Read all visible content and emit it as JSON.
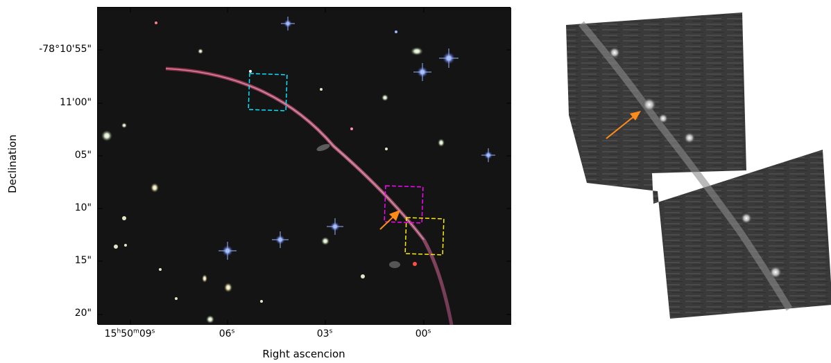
{
  "left_panel": {
    "xlabel": "Right ascencion",
    "ylabel": "Declination",
    "y_ticks": [
      "-78°10'55\"",
      "11'00\"",
      "05\"",
      "10\"",
      "15\"",
      "20\""
    ],
    "x_ticks": [
      {
        "main": "15",
        "h": "h",
        "mid": "50",
        "m": "m",
        "sec": "09",
        "s": "s"
      },
      {
        "main": "",
        "h": "",
        "mid": "",
        "m": "",
        "sec": "06",
        "s": "s"
      },
      {
        "main": "",
        "h": "",
        "mid": "",
        "m": "",
        "sec": "03",
        "s": "s"
      },
      {
        "main": "",
        "h": "",
        "mid": "",
        "m": "",
        "sec": "00",
        "s": "s"
      }
    ],
    "boxes": [
      {
        "name": "cyan-box",
        "color": "#00e5ff"
      },
      {
        "name": "magenta-box",
        "color": "#ff00ff"
      },
      {
        "name": "yellow-box",
        "color": "#ffee00"
      }
    ],
    "arrow_color": "#ff8c1a"
  },
  "right_panel": {
    "arrow_color": "#ff8c1a"
  }
}
